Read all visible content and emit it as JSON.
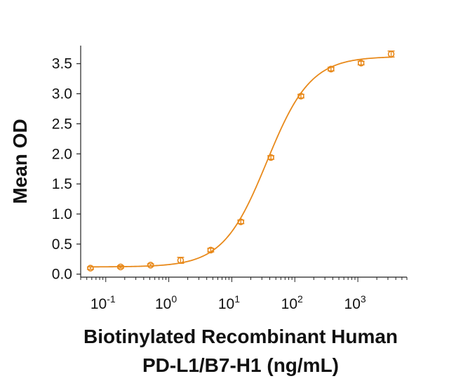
{
  "chart_data": {
    "type": "scatter",
    "xlabel": "Biotinylated Recombinant Human",
    "xlabel_line2": "PD-L1/B7-H1 (ng/mL)",
    "ylabel": "Mean OD",
    "x_scale": "log",
    "xlim": [
      0.04,
      6000
    ],
    "ylim": [
      -0.05,
      3.8
    ],
    "y_ticks": [
      {
        "value": 0.0,
        "label": "0.0"
      },
      {
        "value": 0.5,
        "label": "0.5"
      },
      {
        "value": 1.0,
        "label": "1.0"
      },
      {
        "value": 1.5,
        "label": "1.5"
      },
      {
        "value": 2.0,
        "label": "2.0"
      },
      {
        "value": 2.5,
        "label": "2.5"
      },
      {
        "value": 3.0,
        "label": "3.0"
      },
      {
        "value": 3.5,
        "label": "3.5"
      }
    ],
    "x_ticks": [
      {
        "value": 0.1,
        "base": "10",
        "exp": "-1"
      },
      {
        "value": 1,
        "base": "10",
        "exp": "0"
      },
      {
        "value": 10,
        "base": "10",
        "exp": "1"
      },
      {
        "value": 100,
        "base": "10",
        "exp": "2"
      },
      {
        "value": 1000,
        "base": "10",
        "exp": "3"
      }
    ],
    "grid": false,
    "color": "#E8891A",
    "series": [
      {
        "points": [
          {
            "x": 0.0572,
            "y": 0.1,
            "err": 0.02
          },
          {
            "x": 0.172,
            "y": 0.12,
            "err": 0.02
          },
          {
            "x": 0.514,
            "y": 0.15,
            "err": 0.02
          },
          {
            "x": 1.54,
            "y": 0.23,
            "err": 0.05
          },
          {
            "x": 4.63,
            "y": 0.4,
            "err": 0.03
          },
          {
            "x": 13.9,
            "y": 0.87,
            "err": 0.03
          },
          {
            "x": 41.7,
            "y": 1.94,
            "err": 0.03
          },
          {
            "x": 125,
            "y": 2.96,
            "err": 0.03
          },
          {
            "x": 375,
            "y": 3.41,
            "err": 0.03
          },
          {
            "x": 1125,
            "y": 3.51,
            "err": 0.03
          },
          {
            "x": 3375,
            "y": 3.66,
            "err": 0.05
          }
        ],
        "fit": {
          "bottom": 0.12,
          "top": 3.62,
          "ec50": 36,
          "hill": 1.25
        }
      }
    ]
  }
}
